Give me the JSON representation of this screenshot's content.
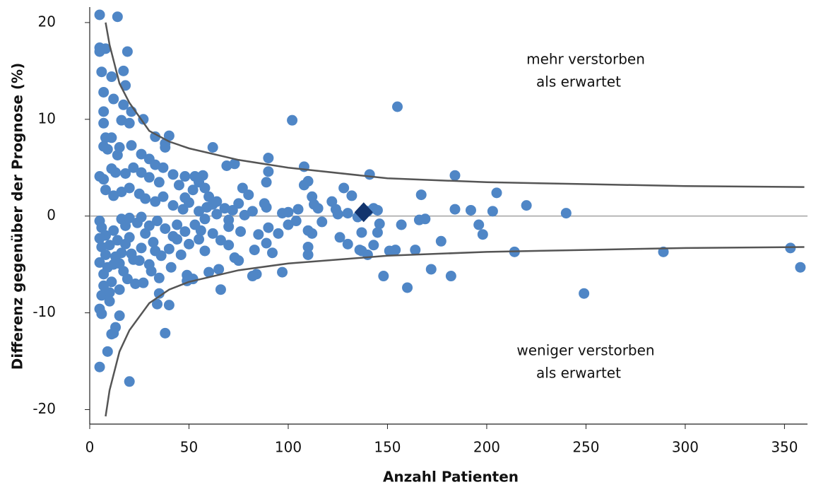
{
  "chart_data": {
    "type": "scatter",
    "xlabel": "Anzahl Patienten",
    "ylabel": "Differenz gegenüber der Prognose (%)",
    "xlim": [
      0,
      361.6
    ],
    "ylim": [
      -21.5,
      21.6
    ],
    "xticks": [
      0,
      50,
      100,
      150,
      200,
      250,
      300,
      350
    ],
    "yticks": [
      -20,
      -10,
      0,
      10,
      20
    ],
    "hline": 0,
    "annotations": [
      [
        "mehr verstorben",
        "als erwartet"
      ],
      [
        "weniger verstorben",
        "als erwartet"
      ]
    ],
    "series": [
      {
        "color": "#4f86c6",
        "x": [
          155,
          102,
          90,
          108,
          110,
          108,
          62,
          69,
          73,
          77,
          80,
          89,
          90,
          97,
          100,
          104,
          105,
          112,
          113,
          115,
          117,
          122,
          124,
          125,
          128,
          130,
          132,
          135,
          137,
          140,
          141,
          143,
          145,
          146,
          145,
          143,
          140,
          137,
          130,
          126,
          136,
          148,
          151,
          154,
          157,
          160,
          164,
          166,
          167,
          169,
          172,
          177,
          182,
          184,
          184,
          192,
          196,
          198,
          203,
          205,
          214,
          220,
          240,
          249,
          289,
          353,
          358,
          110,
          110,
          110,
          112,
          97,
          92,
          89,
          85,
          83,
          84,
          82,
          90,
          95,
          100,
          73,
          75,
          70,
          66,
          65,
          60,
          58,
          55,
          49,
          49,
          52,
          40,
          38,
          34,
          35,
          20,
          5,
          9,
          11,
          13,
          15,
          10,
          6,
          5,
          6,
          12,
          5,
          14,
          5,
          5,
          8,
          19,
          6,
          11,
          17,
          18,
          7,
          12,
          17,
          21,
          7,
          7,
          16,
          20,
          27,
          33,
          40,
          38,
          38,
          8,
          11,
          7,
          9,
          14,
          15,
          21,
          26,
          30,
          33,
          37,
          42,
          48,
          53,
          57,
          55,
          58,
          5,
          7,
          11,
          13,
          18,
          22,
          26,
          30,
          35,
          45,
          48,
          52,
          60,
          62,
          64,
          68,
          72,
          75,
          78,
          82,
          88,
          89,
          8,
          12,
          16,
          20,
          25,
          28,
          33,
          37,
          42,
          47,
          50,
          55,
          59,
          64,
          70,
          5,
          6,
          8,
          10,
          12,
          14,
          16,
          18,
          20,
          22,
          24,
          26,
          28,
          30,
          32,
          34,
          36,
          38,
          40,
          42,
          44,
          46,
          48,
          50,
          53,
          56,
          62,
          66,
          70,
          76,
          5,
          7,
          9,
          11,
          13,
          15,
          17,
          19,
          21,
          23,
          27,
          31,
          35,
          6,
          8,
          12,
          16,
          20,
          26,
          30,
          5,
          7,
          10,
          15,
          18,
          25,
          33,
          41,
          44,
          58
        ],
        "values": [
          11.3,
          9.9,
          6.0,
          5.1,
          3.6,
          3.2,
          7.1,
          5.2,
          5.4,
          2.9,
          2.2,
          3.5,
          4.6,
          0.3,
          0.4,
          -0.5,
          0.7,
          2.0,
          1.2,
          0.8,
          -0.6,
          1.5,
          0.7,
          0.2,
          2.9,
          0.3,
          2.1,
          -0.1,
          -1.7,
          0.5,
          4.3,
          0.8,
          0.6,
          -0.8,
          -1.7,
          -3.0,
          -4.0,
          -3.6,
          -2.9,
          -2.2,
          -3.5,
          -6.2,
          -3.6,
          -3.5,
          -0.9,
          -7.4,
          -3.5,
          -0.4,
          2.2,
          -0.3,
          -5.5,
          -2.6,
          -6.2,
          4.2,
          0.7,
          0.6,
          -0.9,
          -1.9,
          0.5,
          2.4,
          -3.7,
          1.1,
          0.3,
          -8.0,
          -3.7,
          -3.3,
          -5.3,
          -1.5,
          -3.2,
          -4.0,
          -1.8,
          -5.8,
          -3.8,
          -2.8,
          -1.9,
          -3.5,
          -6.0,
          -6.2,
          -1.2,
          -1.8,
          -0.9,
          -4.3,
          -4.6,
          -3.0,
          -7.6,
          -5.5,
          -5.8,
          -3.6,
          -2.4,
          -6.1,
          -6.7,
          -6.5,
          -9.2,
          -12.1,
          -9.1,
          -8.0,
          -17.1,
          -15.6,
          -14.0,
          -12.2,
          -11.5,
          -10.3,
          -8.8,
          -8.2,
          -9.6,
          -10.1,
          -12.1,
          20.8,
          20.6,
          17.4,
          17.0,
          17.3,
          17.0,
          14.9,
          14.4,
          15.0,
          13.5,
          12.8,
          12.1,
          11.5,
          10.8,
          10.8,
          9.6,
          9.9,
          9.6,
          10.0,
          8.2,
          8.3,
          7.5,
          7.1,
          8.1,
          8.1,
          7.2,
          6.9,
          6.3,
          7.1,
          7.3,
          6.4,
          5.9,
          5.3,
          5.0,
          4.3,
          4.1,
          4.1,
          4.2,
          3.5,
          2.9,
          4.1,
          3.8,
          4.9,
          4.5,
          4.4,
          5.0,
          4.5,
          4.0,
          3.5,
          3.2,
          1.9,
          2.7,
          2.0,
          1.2,
          1.5,
          0.8,
          0.6,
          1.3,
          0.1,
          0.5,
          1.3,
          0.9,
          2.7,
          2.1,
          2.5,
          2.9,
          2.3,
          1.8,
          1.5,
          2.0,
          1.1,
          0.7,
          1.4,
          0.5,
          0.9,
          0.2,
          -0.4,
          -0.5,
          -1.2,
          -2.0,
          -3.0,
          -1.5,
          -2.5,
          -3.8,
          -1.0,
          -2.2,
          -4.5,
          -0.7,
          -3.3,
          -1.8,
          -5.0,
          -2.7,
          -0.5,
          -4.1,
          -1.3,
          -3.4,
          -2.1,
          -0.9,
          -4.0,
          -1.6,
          -2.9,
          -0.9,
          -1.5,
          -1.8,
          -2.5,
          -1.1,
          -1.6,
          -4.8,
          -6.0,
          -5.3,
          -6.8,
          -4.2,
          -7.6,
          -5.7,
          -6.5,
          -3.9,
          -7.0,
          -6.9,
          -5.7,
          -6.4,
          -3.2,
          -4.0,
          -5.0,
          -0.3,
          -0.2,
          -0.1,
          -1.0,
          -2.3,
          -7.2,
          -7.9,
          -4.9,
          -2.9,
          -4.6,
          -3.6,
          -5.3,
          -2.4,
          -0.3
        ]
      },
      {
        "color": "#12346e",
        "marker": "diamond",
        "x": [
          138
        ],
        "values": [
          0.4
        ]
      },
      {
        "color": "#555555",
        "kind": "line",
        "x": [
          8,
          10,
          15,
          20,
          30,
          40,
          50,
          75,
          100,
          150,
          200,
          250,
          300,
          360
        ],
        "values": [
          20.0,
          17.7,
          13.7,
          11.7,
          8.8,
          7.7,
          7.0,
          5.8,
          5.0,
          3.9,
          3.5,
          3.3,
          3.1,
          3.0
        ]
      },
      {
        "color": "#555555",
        "kind": "line",
        "x": [
          8,
          10,
          15,
          20,
          30,
          40,
          50,
          75,
          100,
          150,
          200,
          250,
          300,
          360
        ],
        "values": [
          -20.7,
          -18.0,
          -14.0,
          -11.8,
          -9.0,
          -7.6,
          -6.8,
          -5.6,
          -4.9,
          -4.1,
          -3.7,
          -3.5,
          -3.3,
          -3.2
        ]
      }
    ]
  }
}
